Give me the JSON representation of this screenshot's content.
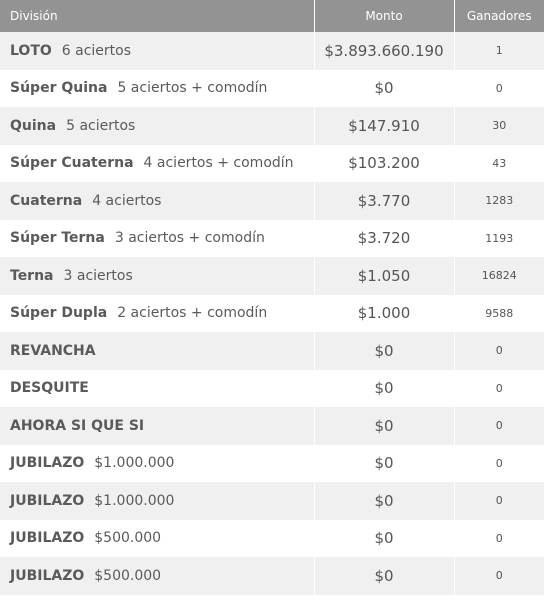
{
  "header": {
    "division": "División",
    "monto": "Monto",
    "ganadores": "Ganadores"
  },
  "rows": [
    {
      "name": "LOTO",
      "sub": "6 aciertos",
      "monto": "$3.893.660.190",
      "ganadores": "1"
    },
    {
      "name": "Súper Quina",
      "sub": "5 aciertos + comodín",
      "monto": "$0",
      "ganadores": "0"
    },
    {
      "name": "Quina",
      "sub": "5 aciertos",
      "monto": "$147.910",
      "ganadores": "30"
    },
    {
      "name": "Súper Cuaterna",
      "sub": "4 aciertos + comodín",
      "monto": "$103.200",
      "ganadores": "43"
    },
    {
      "name": "Cuaterna",
      "sub": "4 aciertos",
      "monto": "$3.770",
      "ganadores": "1283"
    },
    {
      "name": "Súper Terna",
      "sub": "3 aciertos + comodín",
      "monto": "$3.720",
      "ganadores": "1193"
    },
    {
      "name": "Terna",
      "sub": "3 aciertos",
      "monto": "$1.050",
      "ganadores": "16824"
    },
    {
      "name": "Súper Dupla",
      "sub": "2 aciertos + comodín",
      "monto": "$1.000",
      "ganadores": "9588"
    },
    {
      "name": "REVANCHA",
      "sub": "",
      "monto": "$0",
      "ganadores": "0"
    },
    {
      "name": "DESQUITE",
      "sub": "",
      "monto": "$0",
      "ganadores": "0"
    },
    {
      "name": "AHORA SI QUE SI",
      "sub": "",
      "monto": "$0",
      "ganadores": "0"
    },
    {
      "name": "JUBILAZO",
      "sub": "$1.000.000",
      "monto": "$0",
      "ganadores": "0"
    },
    {
      "name": "JUBILAZO",
      "sub": "$1.000.000",
      "monto": "$0",
      "ganadores": "0"
    },
    {
      "name": "JUBILAZO",
      "sub": "$500.000",
      "monto": "$0",
      "ganadores": "0"
    },
    {
      "name": "JUBILAZO",
      "sub": "$500.000",
      "monto": "$0",
      "ganadores": "0"
    }
  ]
}
